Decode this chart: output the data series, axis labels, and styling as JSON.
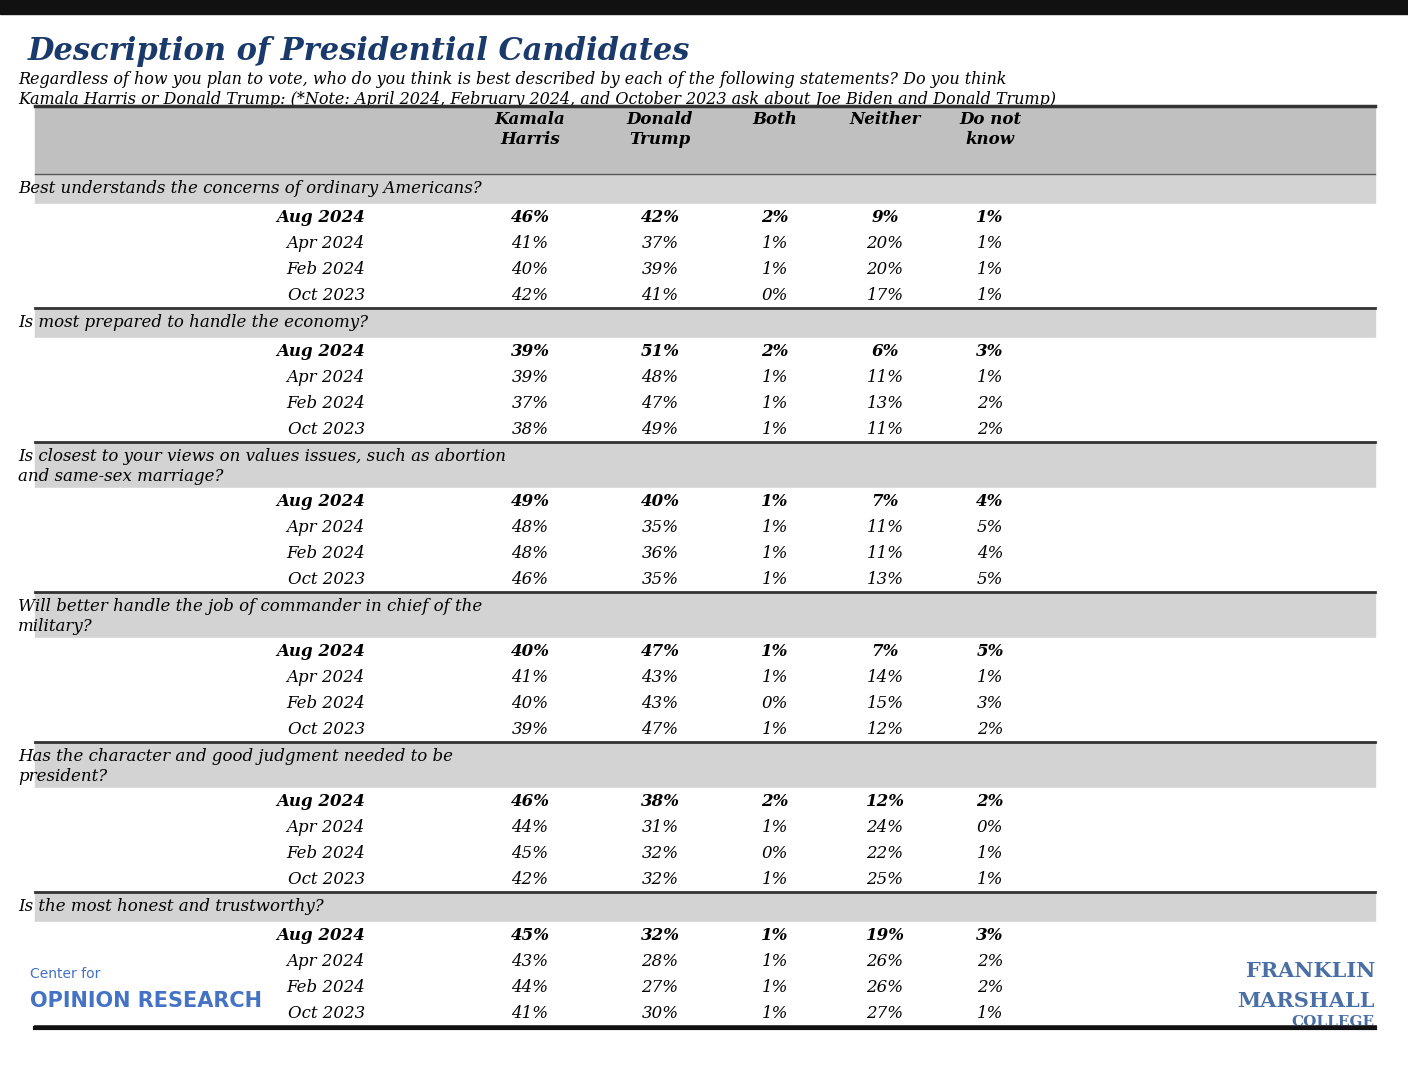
{
  "title": "Description of Presidential Candidates",
  "subtitle_line1": "Regardless of how you plan to vote, who do you think is best described by each of the following statements? Do you think",
  "subtitle_line2": "Kamala Harris or Donald Trump: (*Note: April 2024, February 2024, and October 2023 ask about Joe Biden and Donald Trump)",
  "col_headers": [
    "Kamala\nHarris",
    "Donald\nTrump",
    "Both",
    "Neither",
    "Do not\nknow"
  ],
  "sections": [
    {
      "label": "Best understands the concerns of ordinary Americans?",
      "rows": [
        {
          "period": "Aug 2024",
          "bold": true,
          "harris": "46%",
          "trump": "42%",
          "both": "2%",
          "neither": "9%",
          "donot": "1%"
        },
        {
          "period": "Apr 2024",
          "bold": false,
          "harris": "41%",
          "trump": "37%",
          "both": "1%",
          "neither": "20%",
          "donot": "1%"
        },
        {
          "period": "Feb 2024",
          "bold": false,
          "harris": "40%",
          "trump": "39%",
          "both": "1%",
          "neither": "20%",
          "donot": "1%"
        },
        {
          "period": "Oct 2023",
          "bold": false,
          "harris": "42%",
          "trump": "41%",
          "both": "0%",
          "neither": "17%",
          "donot": "1%"
        }
      ]
    },
    {
      "label": "Is most prepared to handle the economy?",
      "rows": [
        {
          "period": "Aug 2024",
          "bold": true,
          "harris": "39%",
          "trump": "51%",
          "both": "2%",
          "neither": "6%",
          "donot": "3%"
        },
        {
          "period": "Apr 2024",
          "bold": false,
          "harris": "39%",
          "trump": "48%",
          "both": "1%",
          "neither": "11%",
          "donot": "1%"
        },
        {
          "period": "Feb 2024",
          "bold": false,
          "harris": "37%",
          "trump": "47%",
          "both": "1%",
          "neither": "13%",
          "donot": "2%"
        },
        {
          "period": "Oct 2023",
          "bold": false,
          "harris": "38%",
          "trump": "49%",
          "both": "1%",
          "neither": "11%",
          "donot": "2%"
        }
      ]
    },
    {
      "label": "Is closest to your views on values issues, such as abortion\nand same-sex marriage?",
      "rows": [
        {
          "period": "Aug 2024",
          "bold": true,
          "harris": "49%",
          "trump": "40%",
          "both": "1%",
          "neither": "7%",
          "donot": "4%"
        },
        {
          "period": "Apr 2024",
          "bold": false,
          "harris": "48%",
          "trump": "35%",
          "both": "1%",
          "neither": "11%",
          "donot": "5%"
        },
        {
          "period": "Feb 2024",
          "bold": false,
          "harris": "48%",
          "trump": "36%",
          "both": "1%",
          "neither": "11%",
          "donot": "4%"
        },
        {
          "period": "Oct 2023",
          "bold": false,
          "harris": "46%",
          "trump": "35%",
          "both": "1%",
          "neither": "13%",
          "donot": "5%"
        }
      ]
    },
    {
      "label": "Will better handle the job of commander in chief of the\nmilitary?",
      "rows": [
        {
          "period": "Aug 2024",
          "bold": true,
          "harris": "40%",
          "trump": "47%",
          "both": "1%",
          "neither": "7%",
          "donot": "5%"
        },
        {
          "period": "Apr 2024",
          "bold": false,
          "harris": "41%",
          "trump": "43%",
          "both": "1%",
          "neither": "14%",
          "donot": "1%"
        },
        {
          "period": "Feb 2024",
          "bold": false,
          "harris": "40%",
          "trump": "43%",
          "both": "0%",
          "neither": "15%",
          "donot": "3%"
        },
        {
          "period": "Oct 2023",
          "bold": false,
          "harris": "39%",
          "trump": "47%",
          "both": "1%",
          "neither": "12%",
          "donot": "2%"
        }
      ]
    },
    {
      "label": "Has the character and good judgment needed to be\npresident?",
      "rows": [
        {
          "period": "Aug 2024",
          "bold": true,
          "harris": "46%",
          "trump": "38%",
          "both": "2%",
          "neither": "12%",
          "donot": "2%"
        },
        {
          "period": "Apr 2024",
          "bold": false,
          "harris": "44%",
          "trump": "31%",
          "both": "1%",
          "neither": "24%",
          "donot": "0%"
        },
        {
          "period": "Feb 2024",
          "bold": false,
          "harris": "45%",
          "trump": "32%",
          "both": "0%",
          "neither": "22%",
          "donot": "1%"
        },
        {
          "period": "Oct 2023",
          "bold": false,
          "harris": "42%",
          "trump": "32%",
          "both": "1%",
          "neither": "25%",
          "donot": "1%"
        }
      ]
    },
    {
      "label": "Is the most honest and trustworthy?",
      "rows": [
        {
          "period": "Aug 2024",
          "bold": true,
          "harris": "45%",
          "trump": "32%",
          "both": "1%",
          "neither": "19%",
          "donot": "3%"
        },
        {
          "period": "Apr 2024",
          "bold": false,
          "harris": "43%",
          "trump": "28%",
          "both": "1%",
          "neither": "26%",
          "donot": "2%"
        },
        {
          "period": "Feb 2024",
          "bold": false,
          "harris": "44%",
          "trump": "27%",
          "both": "1%",
          "neither": "26%",
          "donot": "2%"
        },
        {
          "period": "Oct 2023",
          "bold": false,
          "harris": "41%",
          "trump": "30%",
          "both": "1%",
          "neither": "27%",
          "donot": "1%"
        }
      ]
    }
  ],
  "colors": {
    "title": "#1a3a6b",
    "header_bg": "#c0c0c0",
    "section_label_bg": "#d3d3d3",
    "row_bg_aug": "#ffffff",
    "row_bg_other": "#ffffff",
    "top_bar": "#1a1a1a",
    "bottom_bar": "#1a1a1a",
    "text_dark": "#000000",
    "separator_line": "#555555"
  }
}
